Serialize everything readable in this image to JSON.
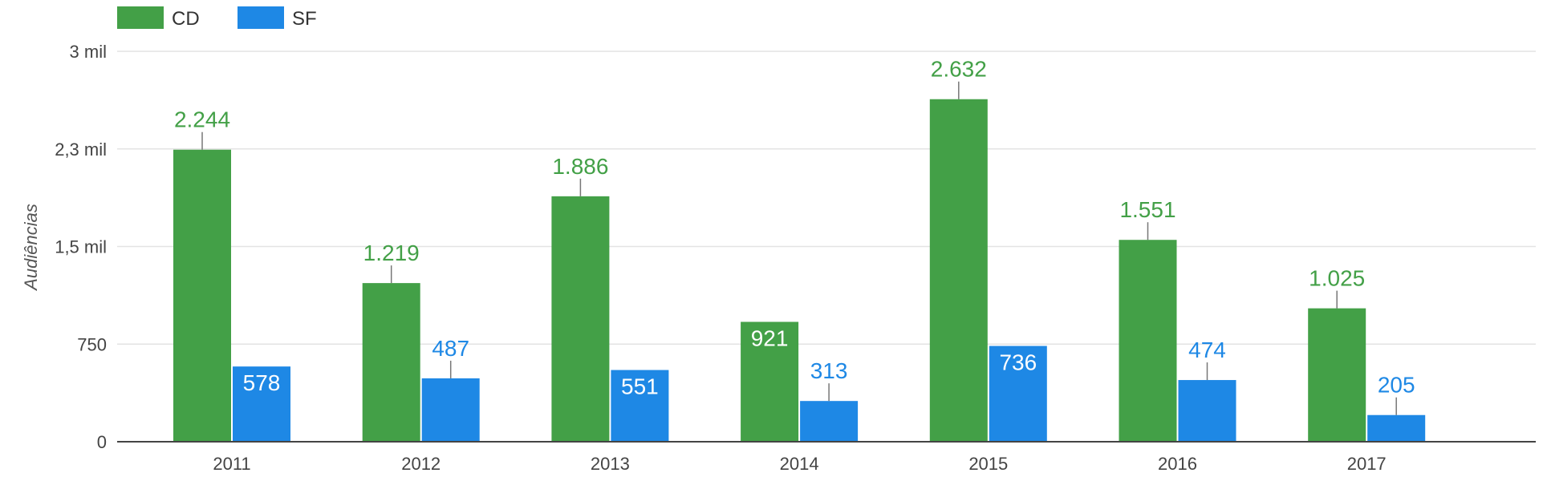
{
  "chart_data": {
    "type": "bar",
    "title": "",
    "xlabel": "",
    "ylabel": "Audiências",
    "categories": [
      "2011",
      "2012",
      "2013",
      "2014",
      "2015",
      "2016",
      "2017"
    ],
    "series": [
      {
        "name": "CD",
        "color": "#43a047",
        "values": [
          2244,
          1219,
          1886,
          921,
          2632,
          1551,
          1025
        ],
        "labels": [
          "2.244",
          "1.219",
          "1.886",
          "921",
          "2.632",
          "1.551",
          "1.025"
        ]
      },
      {
        "name": "SF",
        "color": "#1e88e5",
        "values": [
          578,
          487,
          551,
          313,
          736,
          474,
          205
        ],
        "labels": [
          "578",
          "487",
          "551",
          "313",
          "736",
          "474",
          "205"
        ]
      }
    ],
    "ylim": [
      0,
      3000
    ],
    "yticks": [
      {
        "value": 0,
        "label": "0"
      },
      {
        "value": 750,
        "label": "750"
      },
      {
        "value": 1500,
        "label": "1,5 mil"
      },
      {
        "value": 2250,
        "label": "2,3 mil"
      },
      {
        "value": 3000,
        "label": "3 mil"
      }
    ],
    "grid": true,
    "legend_position": "top-left"
  }
}
